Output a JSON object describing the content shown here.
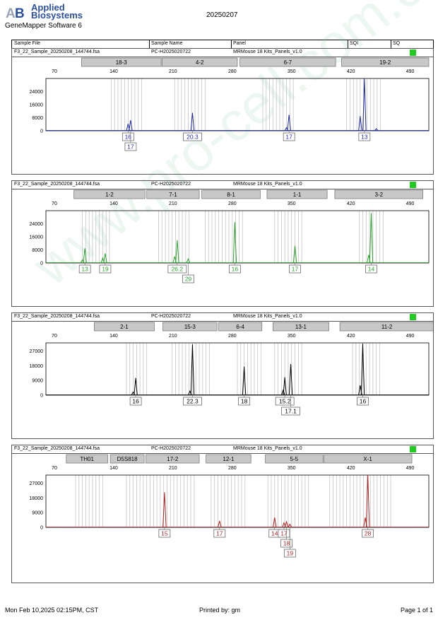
{
  "header": {
    "logo_line1": "Applied",
    "logo_line2": "Biosystems",
    "software": "GeneMapper Software 6",
    "date": "20250207"
  },
  "columns": [
    "Sample File",
    "Sample Name",
    "Panel",
    "SQI",
    "SQ"
  ],
  "sample": {
    "file": "F3_22_Sample_20250208_144744.fsa",
    "name": "PC-H2025020722",
    "panel": "MRMouse 18 Kits_Panels_v1.0"
  },
  "footer": {
    "printed_on": "Mon Feb 10,2025 02:15PM, CST",
    "printed_by": "Printed by: gm",
    "page": "Page 1 of 1"
  },
  "watermark": "www.pro-cell.com.cn",
  "colors": {
    "blue": "#1f2aa8",
    "green": "#2aa32a",
    "black": "#000000",
    "red": "#b22222",
    "status": "#1fcc1f"
  },
  "chart_data": [
    {
      "type": "line",
      "dye": "blue",
      "xlim": [
        60,
        512
      ],
      "x_ticks": [
        70,
        140,
        210,
        280,
        350,
        420,
        490
      ],
      "ylim": [
        0,
        32000
      ],
      "y_ticks": [
        0,
        8000,
        16000,
        24000
      ],
      "markers": [
        {
          "label": "18-3",
          "start": 102,
          "end": 196
        },
        {
          "label": "4-2",
          "start": 197,
          "end": 286
        },
        {
          "label": "6-7",
          "start": 289,
          "end": 402
        },
        {
          "label": "19-2",
          "start": 409,
          "end": 512
        }
      ],
      "bins": [
        137,
        141,
        145,
        149,
        153,
        157,
        161,
        165,
        169,
        173,
        212,
        216,
        220,
        224,
        228,
        232,
        236,
        240,
        244,
        248,
        316,
        320,
        324,
        328,
        332,
        336,
        340,
        344,
        348,
        352,
        415,
        419,
        423,
        427,
        431,
        435,
        439,
        443,
        447,
        451,
        455
      ],
      "peaks": [
        {
          "x": 157,
          "height": 4200
        },
        {
          "x": 160,
          "height": 6500
        },
        {
          "x": 233,
          "height": 11000
        },
        {
          "x": 344,
          "height": 2000
        },
        {
          "x": 347,
          "height": 9800
        },
        {
          "x": 431,
          "height": 9000
        },
        {
          "x": 436,
          "height": 32000
        },
        {
          "x": 450,
          "height": 1200
        }
      ],
      "allele_labels": [
        {
          "x": 157,
          "row": 0,
          "text": "16"
        },
        {
          "x": 160,
          "row": 1,
          "text": "17"
        },
        {
          "x": 233,
          "row": 0,
          "text": "20.3"
        },
        {
          "x": 347,
          "row": 0,
          "text": "17"
        },
        {
          "x": 436,
          "row": 0,
          "text": "13"
        }
      ]
    },
    {
      "type": "line",
      "dye": "green",
      "xlim": [
        60,
        512
      ],
      "x_ticks": [
        70,
        140,
        210,
        280,
        350,
        420,
        490
      ],
      "ylim": [
        0,
        32000
      ],
      "y_ticks": [
        0,
        8000,
        16000,
        24000
      ],
      "markers": [
        {
          "label": "1-2",
          "start": 93,
          "end": 177
        },
        {
          "label": "7-1",
          "start": 179,
          "end": 241
        },
        {
          "label": "8-1",
          "start": 244,
          "end": 313
        },
        {
          "label": "1-1",
          "start": 321,
          "end": 392
        },
        {
          "label": "3-2",
          "start": 401,
          "end": 505
        }
      ],
      "bins": [
        103,
        107,
        111,
        115,
        119,
        123,
        127,
        131,
        135,
        193,
        197,
        201,
        205,
        209,
        213,
        217,
        221,
        225,
        229,
        248,
        252,
        256,
        260,
        264,
        268,
        272,
        276,
        280,
        284,
        288,
        292,
        330,
        334,
        338,
        342,
        346,
        350,
        354,
        358,
        362,
        430,
        434,
        438,
        442,
        446,
        450,
        454,
        458
      ],
      "peaks": [
        {
          "x": 103,
          "height": 2000
        },
        {
          "x": 106,
          "height": 9000
        },
        {
          "x": 127,
          "height": 3000
        },
        {
          "x": 130,
          "height": 5800
        },
        {
          "x": 212,
          "height": 4000
        },
        {
          "x": 215,
          "height": 14000
        },
        {
          "x": 228,
          "height": 2500
        },
        {
          "x": 283,
          "height": 25000
        },
        {
          "x": 354,
          "height": 10500
        },
        {
          "x": 441,
          "height": 5000
        },
        {
          "x": 444,
          "height": 30500
        }
      ],
      "allele_labels": [
        {
          "x": 106,
          "row": 0,
          "text": "13"
        },
        {
          "x": 130,
          "row": 0,
          "text": "19"
        },
        {
          "x": 215,
          "row": 0,
          "text": "26.2"
        },
        {
          "x": 228,
          "row": 1,
          "text": "29"
        },
        {
          "x": 283,
          "row": 0,
          "text": "16"
        },
        {
          "x": 354,
          "row": 0,
          "text": "17"
        },
        {
          "x": 444,
          "row": 0,
          "text": "14"
        }
      ]
    },
    {
      "type": "line",
      "dye": "black",
      "xlim": [
        60,
        512
      ],
      "x_ticks": [
        70,
        140,
        210,
        280,
        350,
        420,
        490
      ],
      "ylim": [
        0,
        32000
      ],
      "y_ticks": [
        0,
        9000,
        18000,
        27000
      ],
      "markers": [
        {
          "label": "2-1",
          "start": 117,
          "end": 188
        },
        {
          "label": "15-3",
          "start": 198,
          "end": 262
        },
        {
          "label": "6-4",
          "start": 264,
          "end": 315
        },
        {
          "label": "13-1",
          "start": 328,
          "end": 394
        },
        {
          "label": "11-2",
          "start": 407,
          "end": 518
        }
      ],
      "bins": [
        155,
        159,
        163,
        167,
        171,
        175,
        179,
        209,
        213,
        217,
        221,
        225,
        229,
        233,
        237,
        241,
        245,
        249,
        253,
        286,
        290,
        294,
        298,
        302,
        306,
        310,
        314,
        330,
        334,
        338,
        342,
        346,
        350,
        354,
        358,
        362,
        422,
        426,
        430,
        434,
        438,
        442,
        446,
        450,
        454
      ],
      "peaks": [
        {
          "x": 163,
          "height": 2000
        },
        {
          "x": 166,
          "height": 10500
        },
        {
          "x": 230,
          "height": 2500
        },
        {
          "x": 233,
          "height": 31000
        },
        {
          "x": 294,
          "height": 17500
        },
        {
          "x": 340,
          "height": 3000
        },
        {
          "x": 342,
          "height": 11000
        },
        {
          "x": 349,
          "height": 19000
        },
        {
          "x": 431,
          "height": 6000
        },
        {
          "x": 434,
          "height": 31500
        }
      ],
      "allele_labels": [
        {
          "x": 166,
          "row": 0,
          "text": "16"
        },
        {
          "x": 233,
          "row": 0,
          "text": "22.3"
        },
        {
          "x": 294,
          "row": 0,
          "text": "18"
        },
        {
          "x": 342,
          "row": 0,
          "text": "15.2"
        },
        {
          "x": 349,
          "row": 1,
          "text": "17.1"
        },
        {
          "x": 434,
          "row": 0,
          "text": "16"
        }
      ]
    },
    {
      "type": "line",
      "dye": "red",
      "xlim": [
        60,
        512
      ],
      "x_ticks": [
        70,
        140,
        210,
        280,
        350,
        420,
        490
      ],
      "ylim": [
        0,
        32000
      ],
      "y_ticks": [
        0,
        9000,
        18000,
        27000
      ],
      "markers": [
        {
          "label": "TH01",
          "start": 84,
          "end": 133
        },
        {
          "label": "D5S818",
          "start": 136,
          "end": 176
        },
        {
          "label": "17-2",
          "start": 178,
          "end": 241
        },
        {
          "label": "12-1",
          "start": 249,
          "end": 302
        },
        {
          "label": "5-5",
          "start": 319,
          "end": 387
        },
        {
          "label": "X-1",
          "start": 388,
          "end": 492
        }
      ],
      "bins": [
        95,
        99,
        103,
        107,
        111,
        115,
        119,
        123,
        127,
        155,
        159,
        163,
        167,
        171,
        175,
        179,
        183,
        187,
        191,
        195,
        199,
        203,
        207,
        211,
        215,
        219,
        223,
        227,
        231,
        235,
        255,
        259,
        263,
        267,
        271,
        275,
        279,
        283,
        287,
        291,
        295,
        322,
        326,
        330,
        334,
        338,
        342,
        346,
        350,
        354,
        358,
        362,
        366,
        370,
        395,
        399,
        403,
        407,
        411,
        415,
        419,
        423,
        427,
        431,
        435,
        439,
        443,
        447,
        451,
        455,
        459,
        463,
        467
      ],
      "peaks": [
        {
          "x": 200,
          "height": 21500
        },
        {
          "x": 265,
          "height": 4000
        },
        {
          "x": 330,
          "height": 6000
        },
        {
          "x": 341,
          "height": 2800
        },
        {
          "x": 344,
          "height": 3500
        },
        {
          "x": 348,
          "height": 2000
        },
        {
          "x": 437,
          "height": 6000
        },
        {
          "x": 440,
          "height": 32000
        }
      ],
      "allele_labels": [
        {
          "x": 200,
          "row": 0,
          "text": "15"
        },
        {
          "x": 265,
          "row": 0,
          "text": "17"
        },
        {
          "x": 330,
          "row": 0,
          "text": "14"
        },
        {
          "x": 341,
          "row": 0,
          "text": "17"
        },
        {
          "x": 344,
          "row": 1,
          "text": "18"
        },
        {
          "x": 348,
          "row": 2,
          "text": "19"
        },
        {
          "x": 440,
          "row": 0,
          "text": "28"
        }
      ]
    }
  ]
}
